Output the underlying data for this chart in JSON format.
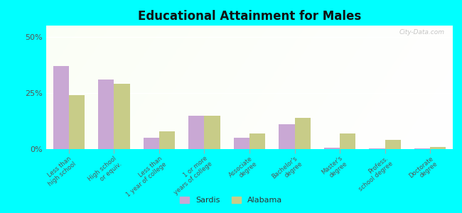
{
  "title": "Educational Attainment for Males",
  "categories": [
    "Less than\nhigh school",
    "High school\nor equiv.",
    "Less than\n1 year of college",
    "1 or more\nyears of college",
    "Associate\ndegree",
    "Bachelor's\ndegree",
    "Master's\ndegree",
    "Profess.\nschool degree",
    "Doctorate\ndegree"
  ],
  "sardis": [
    37.0,
    31.0,
    5.0,
    15.0,
    5.0,
    11.0,
    0.5,
    0.3,
    0.3
  ],
  "alabama": [
    24.0,
    29.0,
    8.0,
    15.0,
    7.0,
    14.0,
    7.0,
    4.0,
    1.0
  ],
  "sardis_color": "#c9a8d4",
  "alabama_color": "#c8cc88",
  "bg_color": "#00ffff",
  "yticks": [
    0,
    25,
    50
  ],
  "ylim": [
    0,
    55
  ],
  "bar_width": 0.35,
  "legend_sardis": "Sardis",
  "legend_alabama": "Alabama",
  "watermark": "City-Data.com"
}
